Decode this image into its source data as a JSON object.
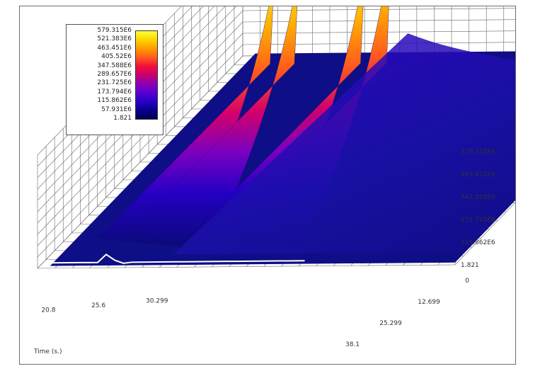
{
  "chart_data": {
    "type": "surface3d",
    "title": "",
    "time_axis": {
      "label": "Time (s.)",
      "ticks": [
        "20.8",
        "25.6",
        "30.299"
      ]
    },
    "depth_axis": {
      "ticks": [
        "0",
        "12.699",
        "25.299",
        "38.1"
      ]
    },
    "z_axis": {
      "ticks": [
        "1.821",
        "115.862E6",
        "231.725E6",
        "347.588E6",
        "463.451E6",
        "579.315E6"
      ],
      "range": [
        1.821,
        579315000
      ]
    },
    "colorbar": {
      "labels": [
        "579.315E6",
        "521.383E6",
        "463.451E6",
        "405.52E6",
        "347.588E6",
        "289.657E6",
        "231.725E6",
        "173.794E6",
        "115.862E6",
        "57.931E6",
        "1.821"
      ],
      "colors": [
        "#ffff33",
        "#ffd400",
        "#ff9a00",
        "#ff5a1e",
        "#f0103c",
        "#c8006e",
        "#8c00b4",
        "#5a00d2",
        "#2800c8",
        "#08008c",
        "#000050"
      ]
    },
    "peaks": [
      {
        "time": 20.4,
        "depth": 38.1,
        "value": 450000000
      },
      {
        "time": 21.8,
        "depth": 38.1,
        "value": 470000000
      },
      {
        "time": 25.6,
        "depth": 38.1,
        "value": 495000000
      },
      {
        "time": 27.1,
        "depth": 38.1,
        "value": 579315000
      }
    ]
  }
}
